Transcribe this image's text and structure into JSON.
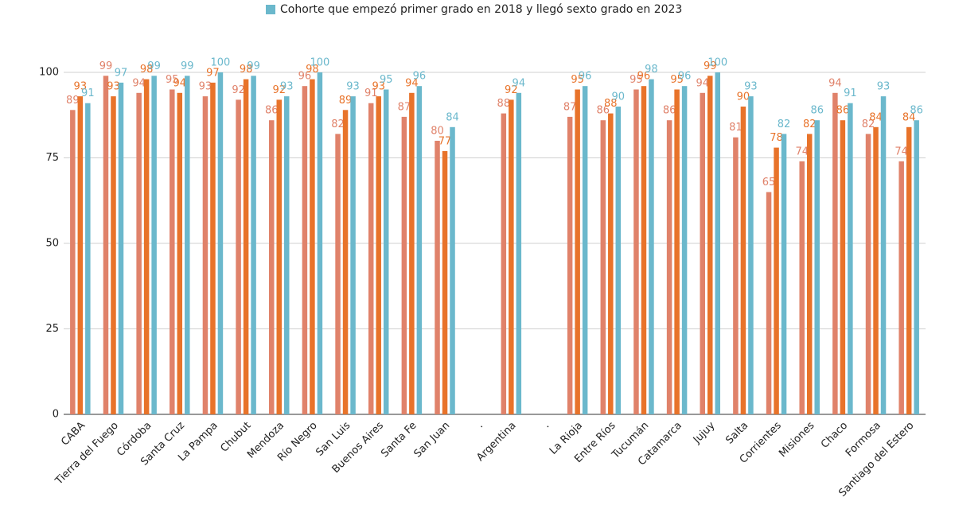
{
  "chart_data": {
    "type": "bar",
    "categories": [
      "CABA",
      "Tierra del Fuego",
      "Córdoba",
      "Santa Cruz",
      "La Pampa",
      "Chubut",
      "Mendoza",
      "Río Negro",
      "San Luis",
      "Buenos Aires",
      "Santa Fe",
      "San Juan",
      ".",
      "Argentina",
      ".",
      "La Rioja",
      "Entre Ríos",
      "Tucumán",
      "Catamarca",
      "Jujuy",
      "Salta",
      "Corrientes",
      "Misiones",
      "Chaco",
      "Formosa",
      "Santiago del Estero"
    ],
    "series": [
      {
        "color": "#e0826a",
        "values": [
          89,
          99,
          94,
          95,
          93,
          92,
          86,
          96,
          82,
          91,
          87,
          80,
          null,
          88,
          null,
          87,
          86,
          95,
          86,
          94,
          81,
          65,
          74,
          94,
          82,
          74
        ]
      },
      {
        "color": "#e8732a",
        "values": [
          93,
          93,
          98,
          94,
          97,
          98,
          92,
          98,
          89,
          93,
          94,
          77,
          null,
          92,
          null,
          95,
          88,
          96,
          95,
          99,
          90,
          78,
          82,
          86,
          84,
          84
        ]
      },
      {
        "name": "Cohorte que empezó primer grado en 2018 y llegó sexto grado en 2023",
        "color": "#6bb8cc",
        "values": [
          91,
          97,
          99,
          99,
          100,
          99,
          93,
          100,
          93,
          95,
          96,
          84,
          null,
          94,
          null,
          96,
          90,
          98,
          96,
          100,
          93,
          82,
          86,
          91,
          93,
          86
        ]
      }
    ],
    "ylim": [
      0,
      105
    ],
    "yticks": [
      0,
      25,
      50,
      75,
      100
    ],
    "grid": true
  }
}
